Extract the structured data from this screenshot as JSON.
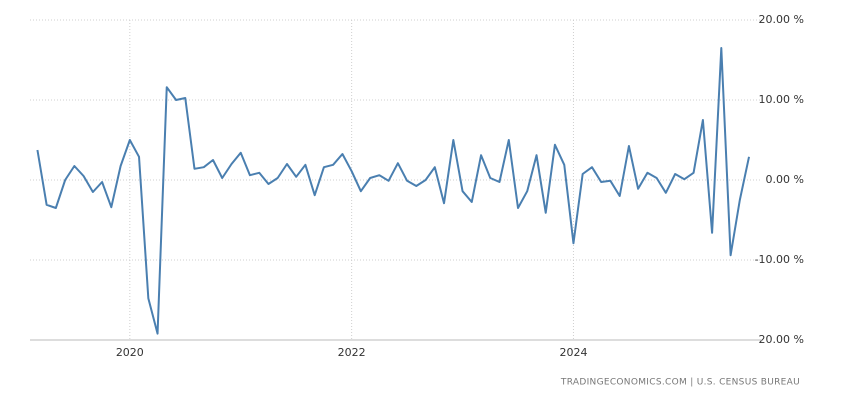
{
  "chart_data": {
    "type": "line",
    "x": [
      2019.167,
      2019.25,
      2019.333,
      2019.417,
      2019.5,
      2019.583,
      2019.667,
      2019.75,
      2019.833,
      2019.917,
      2020,
      2020.083,
      2020.167,
      2020.25,
      2020.333,
      2020.417,
      2020.5,
      2020.583,
      2020.667,
      2020.75,
      2020.833,
      2020.917,
      2021,
      2021.083,
      2021.167,
      2021.25,
      2021.333,
      2021.417,
      2021.5,
      2021.583,
      2021.667,
      2021.75,
      2021.833,
      2021.917,
      2022,
      2022.083,
      2022.167,
      2022.25,
      2022.333,
      2022.417,
      2022.5,
      2022.583,
      2022.667,
      2022.75,
      2022.833,
      2022.917,
      2023,
      2023.083,
      2023.167,
      2023.25,
      2023.333,
      2023.417,
      2023.5,
      2023.583,
      2023.667,
      2023.75,
      2023.833,
      2023.917,
      2024,
      2024.083,
      2024.167,
      2024.25,
      2024.333,
      2024.417,
      2024.5,
      2024.583,
      2024.667,
      2024.75,
      2024.833,
      2024.917,
      2025,
      2025.083,
      2025.167,
      2025.25,
      2025.333,
      2025.417,
      2025.5,
      2025.583
    ],
    "series": [
      {
        "color": "#4a7fb0",
        "values": [
          3.75,
          -3.1,
          -3.5,
          0,
          1.75,
          0.5,
          -1.5,
          -0.25,
          -3.4,
          1.75,
          5,
          2.9,
          -14.8,
          -19.2,
          11.6,
          10,
          10.25,
          1.4,
          1.6,
          2.5,
          0.25,
          2,
          3.4,
          0.6,
          0.9,
          -0.5,
          0.25,
          2,
          0.4,
          1.9,
          -1.9,
          1.6,
          1.9,
          3.25,
          1.1,
          -1.4,
          0.25,
          0.6,
          -0.1,
          2.1,
          -0.1,
          -0.75,
          0,
          1.6,
          -2.9,
          5,
          -1.4,
          -2.75,
          3.1,
          0.25,
          -0.25,
          5,
          -3.5,
          -1.4,
          3.1,
          -4.1,
          4.4,
          1.9,
          -7.9,
          0.75,
          1.6,
          -0.25,
          -0.1,
          -2,
          4.25,
          -1.1,
          0.9,
          0.25,
          -1.6,
          0.75,
          0.1,
          0.9,
          7.5,
          -6.6,
          16.5,
          -9.4,
          -2.5,
          2.9
        ]
      }
    ],
    "xlim": [
      2019.1,
      2025.7
    ],
    "xticks": [
      2020,
      2022,
      2024
    ],
    "ylim": [
      -20,
      20
    ],
    "yticks": [
      {
        "value": 20,
        "label": "20.00 %"
      },
      {
        "value": 10,
        "label": "10.00 %"
      },
      {
        "value": 0,
        "label": "0.00 %"
      },
      {
        "value": -10,
        "label": "-10.00 %"
      },
      {
        "value": -20,
        "label": "-20.00 %"
      }
    ],
    "grid": true,
    "source": "TRADINGECONOMICS.COM  |  U.S. CENSUS BUREAU"
  }
}
